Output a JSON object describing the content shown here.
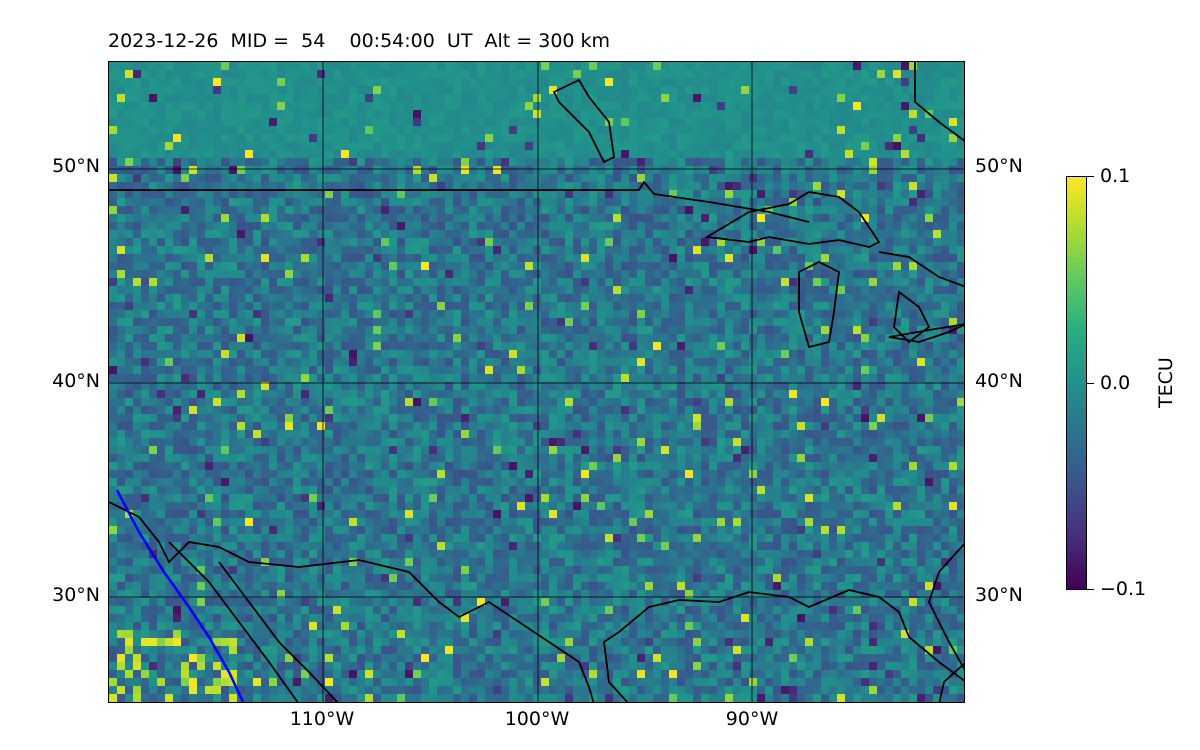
{
  "title": "2023-12-26  MID =  54    00:54:00  UT  Alt = 300 km",
  "axes": {
    "lat_labels": [
      "50°N",
      "40°N",
      "30°N"
    ],
    "lon_labels": [
      "110°W",
      "100°W",
      "90°W"
    ]
  },
  "colorbar": {
    "label": "TECU",
    "max_label": "0.1",
    "mid_label": "0.0",
    "min_label": "−0.1",
    "colormap": "viridis"
  },
  "colors": {
    "coastline": "#000000",
    "track": "#0000ff",
    "grid": "#000000"
  }
}
